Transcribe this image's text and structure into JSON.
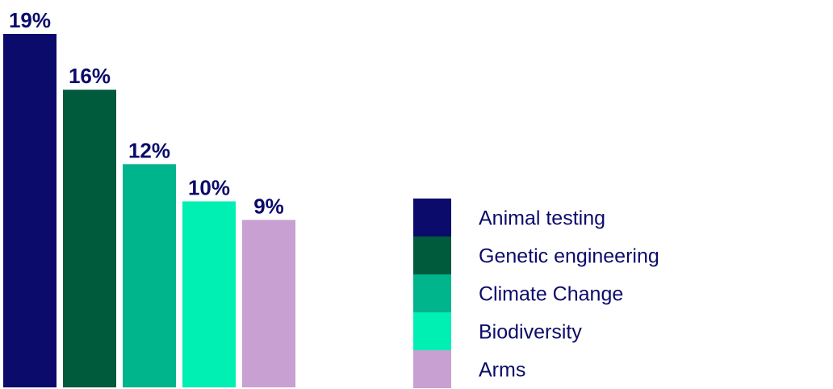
{
  "chart_data": {
    "type": "bar",
    "categories": [
      "Animal testing",
      "Genetic engineering",
      "Climate Change",
      "Biodiversity",
      "Arms"
    ],
    "values": [
      19,
      16,
      12,
      10,
      9
    ],
    "value_labels": [
      "19%",
      "16%",
      "12%",
      "10%",
      "9%"
    ],
    "colors": [
      "#0b0b6b",
      "#005a3c",
      "#00b48c",
      "#00f0b4",
      "#c8a0d2"
    ],
    "ylim": [
      0,
      19
    ],
    "grid": false,
    "legend_position": "right",
    "title": "",
    "xlabel": "",
    "ylabel": ""
  }
}
